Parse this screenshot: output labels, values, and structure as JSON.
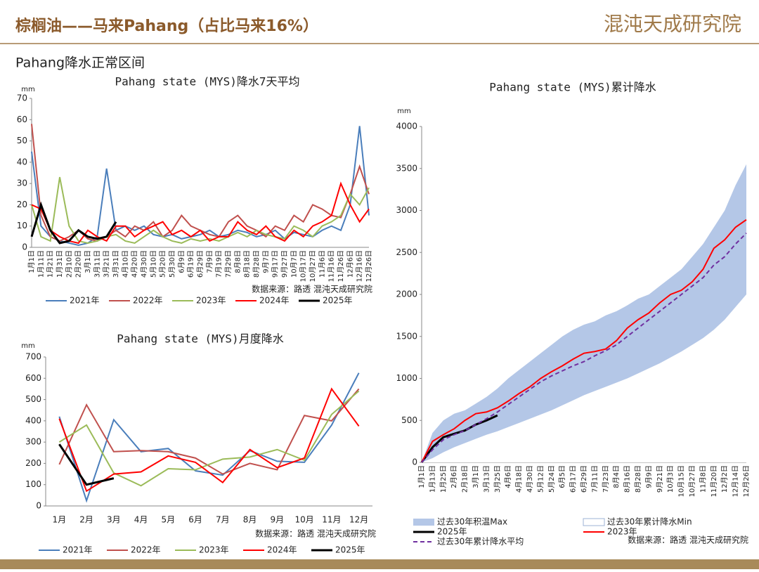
{
  "header": {
    "title": "棕榈油——马来Pahang（占比马来16%）",
    "logo": "混沌天成研究院",
    "subtitle": "Pahang降水正常区间"
  },
  "chart_data": [
    {
      "type": "line",
      "title": "Pahang state (MYS)降水7天平均",
      "unit": "mm",
      "source": "数据来源：路透  混沌天成研究院",
      "categories": [
        "1月1日",
        "1月11日",
        "1月21日",
        "1月31日",
        "2月10日",
        "2月20日",
        "3月1日",
        "3月11日",
        "3月21日",
        "3月31日",
        "4月10日",
        "4月20日",
        "4月30日",
        "5月10日",
        "5月20日",
        "5月30日",
        "6月9日",
        "6月19日",
        "6月29日",
        "7月9日",
        "7月19日",
        "7月29日",
        "8月8日",
        "8月18日",
        "8月28日",
        "9月7日",
        "9月17日",
        "9月27日",
        "10月7日",
        "10月17日",
        "10月27日",
        "11月6日",
        "11月16日",
        "11月26日",
        "12月6日",
        "12月16日",
        "12月26日"
      ],
      "ylim": [
        0,
        70
      ],
      "yticks": [
        0,
        10,
        20,
        30,
        40,
        50,
        60,
        70
      ],
      "series": [
        {
          "name": "2021年",
          "color": "#4a7ebb",
          "values": [
            45,
            10,
            5,
            3,
            2,
            1,
            2,
            5,
            37,
            8,
            10,
            8,
            10,
            6,
            5,
            6,
            4,
            5,
            6,
            8,
            5,
            6,
            8,
            7,
            5,
            6,
            8,
            4,
            7,
            6,
            5,
            8,
            10,
            8,
            20,
            57,
            15
          ]
        },
        {
          "name": "2022年",
          "color": "#c0504d",
          "values": [
            58,
            15,
            5,
            3,
            5,
            8,
            4,
            3,
            5,
            8,
            5,
            10,
            8,
            12,
            5,
            8,
            15,
            10,
            8,
            6,
            5,
            12,
            15,
            10,
            8,
            5,
            10,
            8,
            15,
            12,
            20,
            18,
            15,
            14,
            25,
            38,
            25
          ]
        },
        {
          "name": "2023年",
          "color": "#9bbb59",
          "values": [
            20,
            5,
            3,
            33,
            10,
            3,
            2,
            3,
            5,
            6,
            3,
            2,
            5,
            8,
            5,
            3,
            2,
            4,
            3,
            4,
            3,
            5,
            7,
            5,
            8,
            6,
            5,
            4,
            10,
            8,
            5,
            10,
            12,
            15,
            25,
            20,
            28
          ]
        },
        {
          "name": "2024年",
          "color": "#ff0000",
          "values": [
            20,
            18,
            8,
            5,
            3,
            2,
            8,
            5,
            3,
            10,
            10,
            5,
            8,
            10,
            12,
            6,
            8,
            5,
            8,
            3,
            5,
            5,
            12,
            8,
            6,
            10,
            5,
            3,
            8,
            5,
            10,
            12,
            15,
            30,
            20,
            12,
            18
          ]
        },
        {
          "name": "2025年",
          "color": "#000000",
          "width": 3,
          "values": [
            5,
            20,
            8,
            2,
            3,
            8,
            5,
            4,
            5,
            12,
            null,
            null,
            null,
            null,
            null,
            null,
            null,
            null,
            null,
            null,
            null,
            null,
            null,
            null,
            null,
            null,
            null,
            null,
            null,
            null,
            null,
            null,
            null,
            null,
            null,
            null,
            null
          ]
        }
      ]
    },
    {
      "type": "line",
      "title": "Pahang state (MYS)月度降水",
      "unit": "mm",
      "source": "数据来源：路透  混沌天成研究院",
      "categories": [
        "1月",
        "2月",
        "3月",
        "4月",
        "5月",
        "6月",
        "7月",
        "8月",
        "9月",
        "10月",
        "11月",
        "12月"
      ],
      "ylim": [
        0,
        700
      ],
      "yticks": [
        0,
        100,
        200,
        300,
        400,
        500,
        600,
        700
      ],
      "series": [
        {
          "name": "2021年",
          "color": "#4a7ebb",
          "values": [
            420,
            25,
            405,
            255,
            270,
            165,
            145,
            260,
            210,
            205,
            380,
            625
          ]
        },
        {
          "name": "2022年",
          "color": "#c0504d",
          "values": [
            195,
            475,
            255,
            260,
            255,
            225,
            150,
            200,
            170,
            425,
            400,
            550
          ]
        },
        {
          "name": "2023年",
          "color": "#9bbb59",
          "values": [
            300,
            380,
            155,
            95,
            175,
            170,
            220,
            230,
            265,
            215,
            430,
            540
          ]
        },
        {
          "name": "2024年",
          "color": "#ff0000",
          "values": [
            410,
            70,
            150,
            160,
            235,
            205,
            110,
            265,
            180,
            225,
            550,
            375
          ]
        },
        {
          "name": "2025年",
          "color": "#000000",
          "width": 3,
          "values": [
            290,
            100,
            130,
            null,
            null,
            null,
            null,
            null,
            null,
            null,
            null,
            null
          ]
        }
      ]
    },
    {
      "type": "line",
      "title": "Pahang state (MYS)累计降水",
      "unit": "mm",
      "source": "数据来源：路透 混沌天成研究院",
      "categories": [
        "1月1日",
        "1月13日",
        "1月25日",
        "2月6日",
        "2月18日",
        "3月1日",
        "3月13日",
        "3月25日",
        "4月6日",
        "4月18日",
        "4月30日",
        "5月12日",
        "5月24日",
        "6月5日",
        "6月17日",
        "6月29日",
        "7月11日",
        "7月23日",
        "8月4日",
        "8月16日",
        "8月28日",
        "9月9日",
        "9月21日",
        "10月3日",
        "10月15日",
        "10月27日",
        "11月8日",
        "11月20日",
        "12月2日",
        "12月14日",
        "12月26日"
      ],
      "ylim": [
        0,
        4000
      ],
      "yticks": [
        0,
        500,
        1000,
        1500,
        2000,
        2500,
        3000,
        3500,
        4000
      ],
      "series": [
        {
          "name": "过去30年积温Max",
          "color": "#b4c7e7",
          "style": "area",
          "values": [
            0,
            350,
            500,
            580,
            620,
            700,
            780,
            880,
            1000,
            1100,
            1200,
            1300,
            1400,
            1500,
            1580,
            1640,
            1680,
            1750,
            1800,
            1870,
            1950,
            2000,
            2100,
            2200,
            2300,
            2450,
            2600,
            2800,
            3000,
            3300,
            3550
          ]
        },
        {
          "name": "过去30年累计降水Min",
          "color": "#ffffff",
          "style": "area",
          "values": [
            0,
            50,
            120,
            180,
            230,
            280,
            330,
            370,
            420,
            470,
            520,
            570,
            620,
            680,
            740,
            800,
            850,
            900,
            950,
            1000,
            1060,
            1120,
            1180,
            1250,
            1320,
            1400,
            1480,
            1580,
            1700,
            1850,
            2000
          ]
        },
        {
          "name": "2025年",
          "color": "#000000",
          "width": 3,
          "values": [
            0,
            180,
            300,
            340,
            380,
            450,
            500,
            560,
            null,
            null,
            null,
            null,
            null,
            null,
            null,
            null,
            null,
            null,
            null,
            null,
            null,
            null,
            null,
            null,
            null,
            null,
            null,
            null,
            null,
            null,
            null
          ]
        },
        {
          "name": "2023年",
          "color": "#ff0000",
          "width": 2,
          "values": [
            0,
            250,
            330,
            400,
            500,
            580,
            600,
            650,
            730,
            820,
            900,
            1000,
            1080,
            1150,
            1230,
            1300,
            1320,
            1350,
            1450,
            1600,
            1700,
            1780,
            1900,
            2000,
            2050,
            2150,
            2300,
            2550,
            2650,
            2800,
            2890
          ]
        },
        {
          "name": "过去30年累计降水平均",
          "color": "#7030a0",
          "style": "dashed",
          "values": [
            0,
            150,
            270,
            330,
            380,
            450,
            520,
            600,
            690,
            780,
            870,
            960,
            1030,
            1090,
            1150,
            1200,
            1270,
            1330,
            1400,
            1500,
            1600,
            1700,
            1800,
            1900,
            2000,
            2100,
            2200,
            2350,
            2450,
            2600,
            2730
          ]
        }
      ]
    }
  ]
}
